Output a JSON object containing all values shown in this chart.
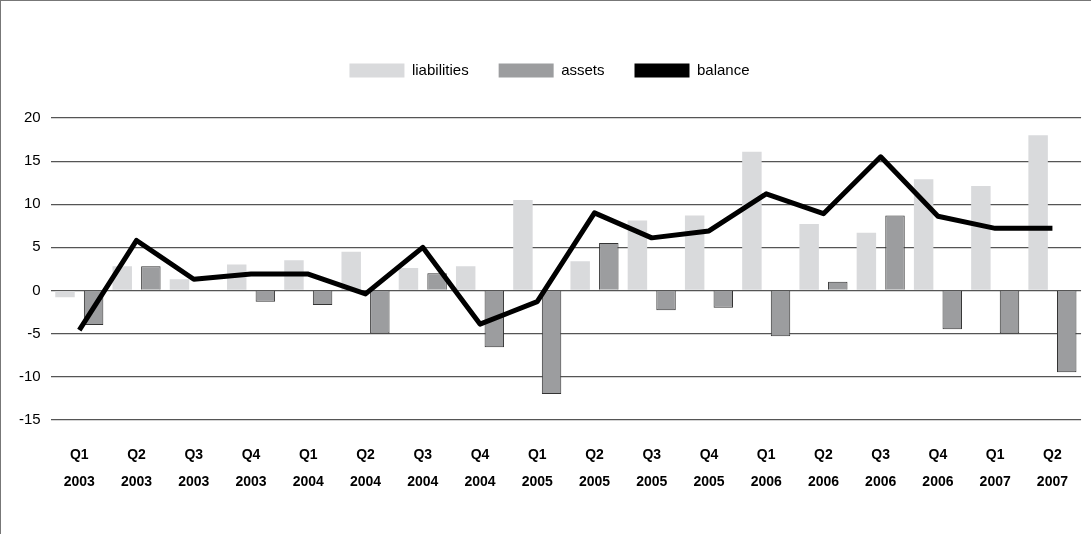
{
  "chart_data": {
    "type": "bar",
    "categories": [
      "Q1 2003",
      "Q2 2003",
      "Q3 2003",
      "Q4 2003",
      "Q1 2004",
      "Q2 2004",
      "Q3 2004",
      "Q4 2004",
      "Q1 2005",
      "Q2 2005",
      "Q3 2005",
      "Q4 2005",
      "Q1 2006",
      "Q2 2006",
      "Q3 2006",
      "Q4 2006",
      "Q1 2007",
      "Q2 2007"
    ],
    "series": [
      {
        "name": "liabilities",
        "color": "#d9dadc",
        "values": [
          -0.8,
          2.8,
          1.3,
          3.0,
          3.5,
          4.5,
          2.6,
          2.8,
          10.5,
          3.4,
          8.1,
          8.7,
          16.1,
          7.7,
          6.7,
          12.9,
          12.1,
          18.0
        ]
      },
      {
        "name": "assets",
        "color": "#9c9d9f",
        "values": [
          -4.0,
          2.8,
          null,
          -1.3,
          -1.7,
          -5.0,
          2.0,
          -6.6,
          -12.0,
          5.5,
          -2.3,
          -2.0,
          -5.3,
          1.0,
          8.7,
          -4.5,
          -5.0,
          -9.5
        ]
      },
      {
        "name": "balance",
        "type": "line",
        "color": "#000000",
        "values": [
          -4.6,
          5.8,
          1.3,
          1.9,
          1.9,
          -0.4,
          5.0,
          -3.9,
          -1.3,
          9.0,
          6.1,
          6.9,
          11.2,
          8.9,
          15.5,
          8.6,
          7.2,
          7.2
        ]
      }
    ],
    "ylim": [
      -15,
      20
    ],
    "yticks": [
      -15,
      -10,
      -5,
      0,
      5,
      10,
      15,
      20
    ],
    "grid": "y",
    "legend": "top",
    "marker": "none",
    "line_style": "solid"
  }
}
